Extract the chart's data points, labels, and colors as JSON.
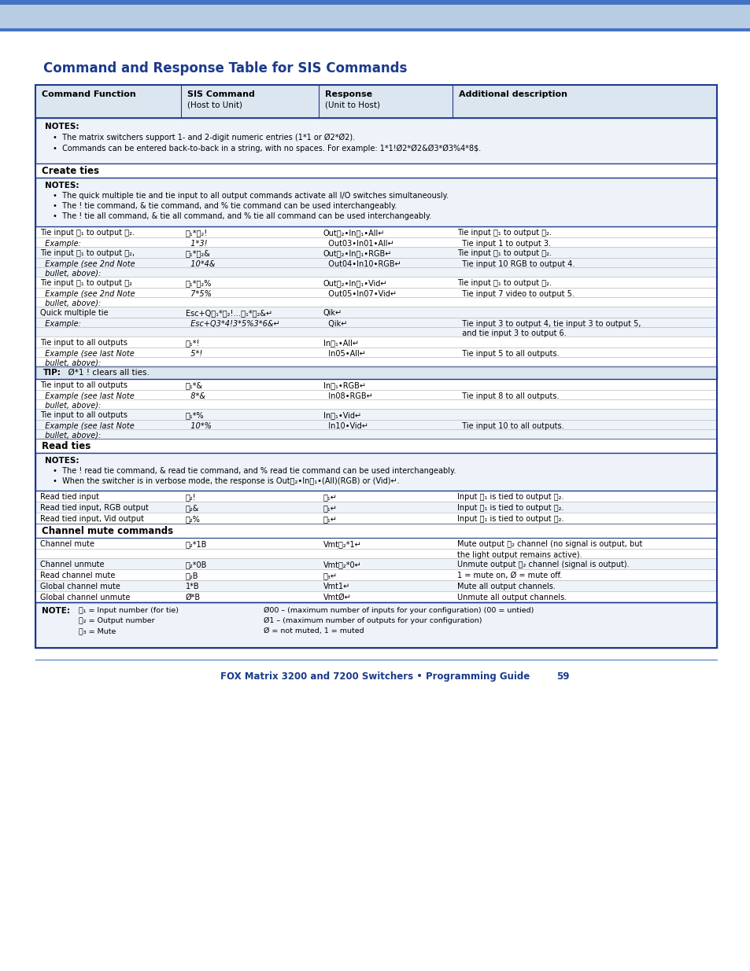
{
  "title": "Command and Response Table for SIS Commands",
  "title_color": "#1a3a8c",
  "page_bg": "#ffffff",
  "header_bg": "#dce6f1",
  "notes_bg": "#eef3fa",
  "tip_bg": "#dce6f1",
  "alt_row_bg": "#eef3fa",
  "border_color": "#1e3a8a",
  "thin_line": "#aaaaaa",
  "footer_text": "FOX Matrix 3200 and 7200 Switchers • Programming Guide",
  "footer_page": "59",
  "footer_color": "#1a3a8c",
  "bar_color": "#b8cce4",
  "bar_line_color": "#4472c4"
}
